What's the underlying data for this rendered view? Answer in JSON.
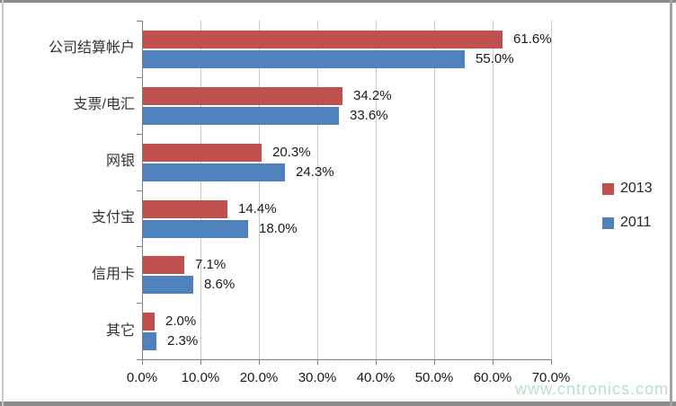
{
  "chart_data": {
    "type": "bar",
    "orientation": "horizontal",
    "title": "",
    "xlabel": "",
    "ylabel": "",
    "xlim": [
      0,
      70
    ],
    "grid": true,
    "legend_position": "right",
    "categories": [
      "公司结算帐户",
      "支票/电汇",
      "网银",
      "支付宝",
      "信用卡",
      "其它"
    ],
    "series": [
      {
        "name": "2013",
        "color": "#c0504d",
        "values": [
          61.6,
          34.2,
          20.3,
          14.4,
          7.1,
          2.0
        ],
        "labels": [
          "61.6%",
          "34.2%",
          "20.3%",
          "14.4%",
          "7.1%",
          "2.0%"
        ]
      },
      {
        "name": "2011",
        "color": "#4f81bd",
        "values": [
          55.0,
          33.6,
          24.3,
          18.0,
          8.6,
          2.3
        ],
        "labels": [
          "55.0%",
          "33.6%",
          "24.3%",
          "18.0%",
          "8.6%",
          "2.3%"
        ]
      }
    ],
    "x_ticks": [
      "0.0%",
      "10.0%",
      "20.0%",
      "30.0%",
      "40.0%",
      "50.0%",
      "60.0%",
      "70.0%"
    ]
  },
  "watermark": {
    "text": "www.cntronics.com",
    "color": "#b7e2c6"
  },
  "colors": {
    "series_2013": "#c0504d",
    "series_2011": "#4f81bd",
    "gridline": "#c9c9c9",
    "axis": "#7f7f7f",
    "frame": "#8c8c8c",
    "background": "#ffffff"
  }
}
